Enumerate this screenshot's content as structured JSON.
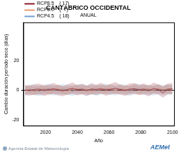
{
  "chart_data": {
    "type": "line",
    "title": "CANTÁBRICO OCCIDENTAL",
    "subtitle": "ANUAL",
    "x_label": "Año",
    "y_label": "Cambio duración período seco (días)",
    "x": [
      2007,
      2010,
      2013,
      2016,
      2019,
      2022,
      2025,
      2028,
      2031,
      2034,
      2037,
      2040,
      2043,
      2046,
      2049,
      2052,
      2055,
      2058,
      2061,
      2064,
      2067,
      2070,
      2073,
      2076,
      2079,
      2082,
      2085,
      2088,
      2091,
      2094,
      2097,
      2100
    ],
    "series": [
      {
        "name": "RCP8.5    ( 17)",
        "color": "#8b1a2a",
        "values": [
          0.2,
          -0.3,
          0.5,
          0.8,
          -0.2,
          0.4,
          1.0,
          0.3,
          -0.5,
          0.6,
          1.2,
          0.2,
          0.7,
          -0.3,
          0.9,
          0.4,
          1.1,
          0.0,
          0.6,
          1.3,
          0.5,
          -0.2,
          0.8,
          1.0,
          0.3,
          0.9,
          -0.4,
          1.2,
          0.6,
          -1.8,
          0.7,
          1.0
        ],
        "upper": [
          3.5,
          3.0,
          4.2,
          4.5,
          3.1,
          3.9,
          5.0,
          3.6,
          2.8,
          4.1,
          5.3,
          3.4,
          4.4,
          3.0,
          4.8,
          3.8,
          5.1,
          3.2,
          4.3,
          5.5,
          3.9,
          3.1,
          4.6,
          5.0,
          3.7,
          4.7,
          2.9,
          5.2,
          4.1,
          2.5,
          4.5,
          4.9
        ],
        "lower": [
          -3.2,
          -3.6,
          -3.0,
          -2.7,
          -3.8,
          -3.1,
          -2.5,
          -3.4,
          -4.0,
          -2.9,
          -2.4,
          -3.5,
          -2.8,
          -3.9,
          -2.6,
          -3.2,
          -2.3,
          -3.7,
          -2.9,
          -2.2,
          -3.0,
          -3.8,
          -2.7,
          -2.4,
          -3.3,
          -2.6,
          -4.1,
          -2.2,
          -2.9,
          -5.0,
          -2.8,
          -2.5
        ]
      },
      {
        "name": "RCP6.0    (  7)",
        "color": "#e89a6a",
        "values": [
          0.1,
          0.4,
          -0.6,
          0.3,
          0.9,
          -0.2,
          0.5,
          0.8,
          0.0,
          -0.4,
          0.7,
          1.0,
          0.2,
          0.5,
          -0.3,
          0.9,
          0.4,
          0.6,
          1.1,
          -0.1,
          0.8,
          0.3,
          0.5,
          1.2,
          0.0,
          0.6,
          0.9,
          0.2,
          1.0,
          0.4,
          0.7,
          0.3
        ],
        "upper": [
          2.8,
          3.2,
          2.4,
          3.0,
          3.6,
          2.6,
          3.1,
          3.5,
          2.7,
          2.3,
          3.3,
          3.8,
          2.9,
          3.2,
          2.5,
          3.7,
          3.0,
          3.3,
          4.0,
          2.6,
          3.5,
          3.0,
          3.2,
          4.1,
          2.7,
          3.4,
          3.8,
          2.9,
          3.9,
          3.1,
          3.5,
          3.0
        ],
        "lower": [
          -2.6,
          -2.3,
          -3.4,
          -2.5,
          -1.9,
          -2.9,
          -2.2,
          -1.9,
          -2.7,
          -3.1,
          -2.0,
          -1.7,
          -2.5,
          -2.2,
          -3.0,
          -1.8,
          -2.3,
          -2.1,
          -1.6,
          -2.8,
          -1.9,
          -2.4,
          -2.2,
          -1.5,
          -2.7,
          -2.1,
          -1.8,
          -2.5,
          -1.7,
          -2.3,
          -2.0,
          -2.4
        ]
      },
      {
        "name": "RCP4.5    ( 18)",
        "color": "#6f9fd0",
        "values": [
          -0.2,
          0.6,
          0.1,
          -0.5,
          0.4,
          0.9,
          -0.1,
          0.3,
          0.7,
          0.2,
          -0.4,
          0.5,
          0.8,
          0.1,
          0.6,
          -0.2,
          0.4,
          0.9,
          0.3,
          0.0,
          0.7,
          0.5,
          -0.3,
          0.6,
          0.8,
          0.2,
          0.4,
          -0.1,
          0.5,
          0.3,
          0.6,
          0.2
        ],
        "upper": [
          3.1,
          4.0,
          3.5,
          2.9,
          3.8,
          4.4,
          3.2,
          3.7,
          4.1,
          3.5,
          2.9,
          3.9,
          4.3,
          3.4,
          4.0,
          3.0,
          3.8,
          4.5,
          3.6,
          3.2,
          4.1,
          3.9,
          2.8,
          4.0,
          4.3,
          3.5,
          3.8,
          3.1,
          3.9,
          3.6,
          4.0,
          3.5
        ],
        "lower": [
          -3.6,
          -2.9,
          -3.3,
          -4.0,
          -3.0,
          -2.5,
          -3.5,
          -3.1,
          -2.7,
          -3.2,
          -3.9,
          -2.9,
          -2.5,
          -3.3,
          -2.8,
          -3.7,
          -3.0,
          -2.4,
          -3.1,
          -3.4,
          -2.6,
          -2.9,
          -3.8,
          -2.8,
          -2.5,
          -3.2,
          -3.0,
          -3.6,
          -2.9,
          -3.1,
          -2.7,
          -3.2
        ]
      }
    ],
    "xlim": [
      2006,
      2101
    ],
    "xticks": [
      2020,
      2040,
      2060,
      2080,
      2100
    ],
    "ylim": [
      -24,
      46
    ],
    "yticks": [
      -20,
      0,
      20
    ],
    "grid": false,
    "legend": "upper left"
  },
  "footer": {
    "left": "Agencia Estatal de Meteorología",
    "right": "AEMet"
  }
}
